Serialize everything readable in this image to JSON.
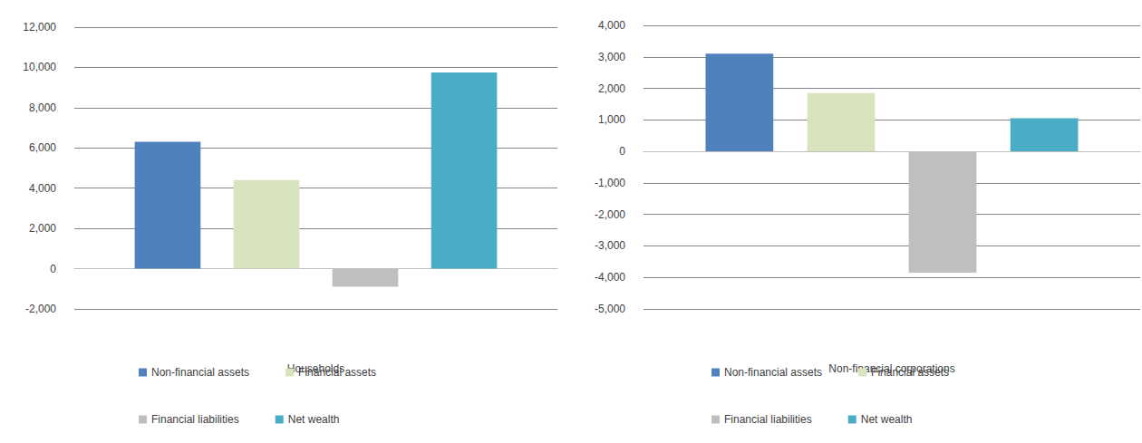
{
  "chart_data": [
    {
      "type": "bar",
      "categories": [
        "Households"
      ],
      "series": [
        {
          "name": "Non-financial assets",
          "color": "#4f81bd",
          "values": [
            6300
          ]
        },
        {
          "name": "Financial assets",
          "color": "#d7e4bd",
          "values": [
            4400
          ]
        },
        {
          "name": "Financial liabilities",
          "color": "#bfbfbf",
          "values": [
            -900
          ]
        },
        {
          "name": "Net wealth",
          "color": "#4bacc6",
          "values": [
            9750
          ]
        }
      ],
      "ylim": [
        -2000,
        12000
      ],
      "yticks": [
        {
          "value": -2000,
          "label": "-2,000"
        },
        0,
        {
          "value": 2000,
          "label": "2,000"
        },
        {
          "value": 4000,
          "label": "4,000"
        },
        {
          "value": 6000,
          "label": "6,000"
        },
        {
          "value": 8000,
          "label": "8,000"
        },
        {
          "value": 10000,
          "label": "10,000"
        },
        {
          "value": 12000,
          "label": "12,000"
        }
      ],
      "grid": true,
      "legend": "bottom"
    },
    {
      "type": "bar",
      "categories": [
        "Non-financial corporations"
      ],
      "series": [
        {
          "name": "Non-financial assets",
          "color": "#4f81bd",
          "values": [
            3100
          ]
        },
        {
          "name": "Financial assets",
          "color": "#d7e4bd",
          "values": [
            1850
          ]
        },
        {
          "name": "Financial liabilities",
          "color": "#bfbfbf",
          "values": [
            -3850
          ]
        },
        {
          "name": "Net wealth",
          "color": "#4bacc6",
          "values": [
            1050
          ]
        }
      ],
      "ylim": [
        -5000,
        4000
      ],
      "yticks": [
        {
          "value": -5000,
          "label": "-5,000"
        },
        {
          "value": -4000,
          "label": "-4,000"
        },
        {
          "value": -3000,
          "label": "-3,000"
        },
        {
          "value": -2000,
          "label": "-2,000"
        },
        {
          "value": -1000,
          "label": "-1,000"
        },
        0,
        {
          "value": 1000,
          "label": "1,000"
        },
        {
          "value": 2000,
          "label": "2,000"
        },
        {
          "value": 3000,
          "label": "3,000"
        },
        {
          "value": 4000,
          "label": "4,000"
        }
      ],
      "grid": true,
      "legend": "bottom"
    }
  ]
}
